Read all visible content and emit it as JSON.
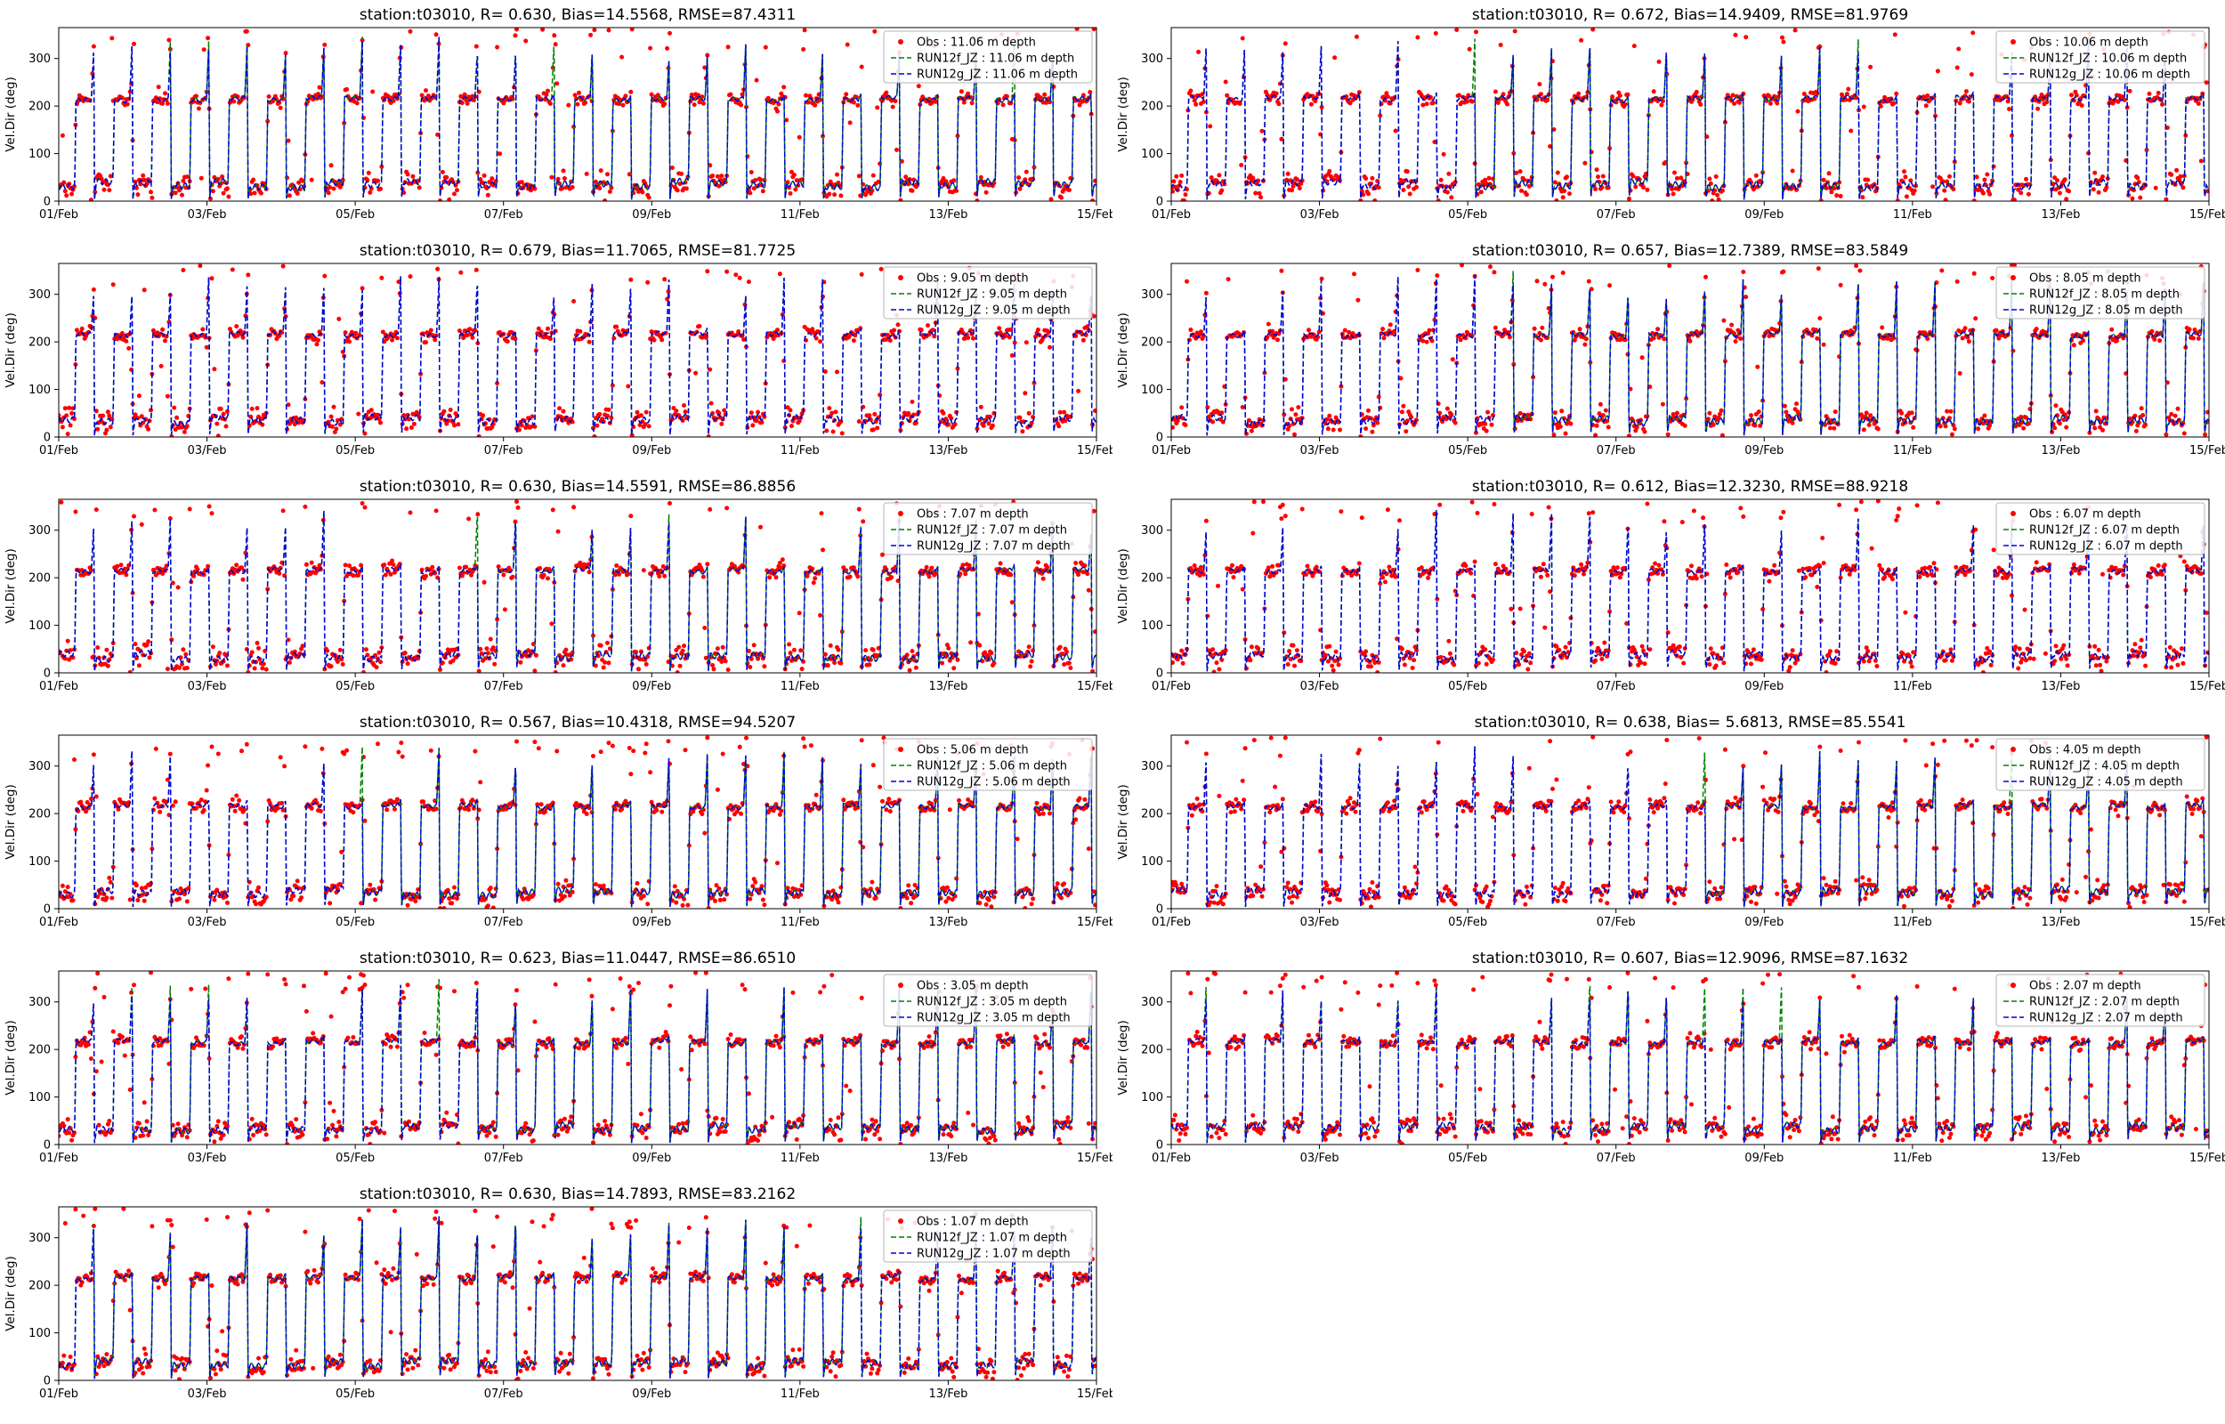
{
  "figure": {
    "background_color": "#ffffff",
    "station": "t03010"
  },
  "chart_data": {
    "type": "line",
    "layout": {
      "rows": 6,
      "cols": 2,
      "panel_order": "row-major",
      "last_row_panels": 1,
      "grid": false,
      "legend_position": "upper right"
    },
    "x_axis": {
      "label": "",
      "range_days": [
        0,
        14
      ],
      "tick_positions_days": [
        0,
        2,
        4,
        6,
        8,
        10,
        12,
        14
      ],
      "tick_labels": [
        "01/Feb",
        "03/Feb",
        "05/Feb",
        "07/Feb",
        "09/Feb",
        "11/Feb",
        "13/Feb",
        "15/Feb"
      ]
    },
    "y_axis": {
      "label": "Vel.Dir (deg)",
      "range": [
        0,
        365
      ],
      "ticks": [
        0,
        100,
        200,
        300
      ]
    },
    "tidal_pattern": {
      "period_days": 0.5175,
      "phase_offset_cycles": 0.55,
      "flood_direction_deg": 215,
      "ebb_direction_deg": 35,
      "spike_max_deg": 350,
      "spike_min_deg": 0,
      "spike_probability": 0.72,
      "obs_interval_days": 0.0175,
      "line_interval_days": 0.007,
      "obs_noise_flood_deg": 6.5,
      "obs_noise_ebb_deg": 11,
      "obs_outlier_fraction": 0.05,
      "transition_scatter_fraction": 0.45,
      "green_deviation_fraction": 0.11
    },
    "panels": [
      {
        "title": "station:t03010, R= 0.630, Bias=14.5568, RMSE=87.4311",
        "station": "t03010",
        "R": 0.63,
        "bias": 14.5568,
        "rmse": 87.4311,
        "depth_m": 11.06,
        "series": [
          {
            "label": "Obs : 11.06 m depth",
            "type": "scatter",
            "color": "#ff0000"
          },
          {
            "label": "RUN12f_JZ : 11.06 m depth",
            "type": "dashed-line",
            "color": "#008000"
          },
          {
            "label": "RUN12g_JZ : 11.06 m depth",
            "type": "dashed-line",
            "color": "#0000dd"
          }
        ]
      },
      {
        "title": "station:t03010, R= 0.672, Bias=14.9409, RMSE=81.9769",
        "station": "t03010",
        "R": 0.672,
        "bias": 14.9409,
        "rmse": 81.9769,
        "depth_m": 10.06,
        "series": [
          {
            "label": "Obs : 10.06 m depth",
            "type": "scatter",
            "color": "#ff0000"
          },
          {
            "label": "RUN12f_JZ : 10.06 m depth",
            "type": "dashed-line",
            "color": "#008000"
          },
          {
            "label": "RUN12g_JZ : 10.06 m depth",
            "type": "dashed-line",
            "color": "#0000dd"
          }
        ]
      },
      {
        "title": "station:t03010, R= 0.679, Bias=11.7065, RMSE=81.7725",
        "station": "t03010",
        "R": 0.679,
        "bias": 11.7065,
        "rmse": 81.7725,
        "depth_m": 9.05,
        "series": [
          {
            "label": "Obs : 9.05 m depth",
            "type": "scatter",
            "color": "#ff0000"
          },
          {
            "label": "RUN12f_JZ : 9.05 m depth",
            "type": "dashed-line",
            "color": "#008000"
          },
          {
            "label": "RUN12g_JZ : 9.05 m depth",
            "type": "dashed-line",
            "color": "#0000dd"
          }
        ]
      },
      {
        "title": "station:t03010, R= 0.657, Bias=12.7389, RMSE=83.5849",
        "station": "t03010",
        "R": 0.657,
        "bias": 12.7389,
        "rmse": 83.5849,
        "depth_m": 8.05,
        "series": [
          {
            "label": "Obs : 8.05 m depth",
            "type": "scatter",
            "color": "#ff0000"
          },
          {
            "label": "RUN12f_JZ : 8.05 m depth",
            "type": "dashed-line",
            "color": "#008000"
          },
          {
            "label": "RUN12g_JZ : 8.05 m depth",
            "type": "dashed-line",
            "color": "#0000dd"
          }
        ]
      },
      {
        "title": "station:t03010, R= 0.630, Bias=14.5591, RMSE=86.8856",
        "station": "t03010",
        "R": 0.63,
        "bias": 14.5591,
        "rmse": 86.8856,
        "depth_m": 7.07,
        "series": [
          {
            "label": "Obs : 7.07 m depth",
            "type": "scatter",
            "color": "#ff0000"
          },
          {
            "label": "RUN12f_JZ : 7.07 m depth",
            "type": "dashed-line",
            "color": "#008000"
          },
          {
            "label": "RUN12g_JZ : 7.07 m depth",
            "type": "dashed-line",
            "color": "#0000dd"
          }
        ]
      },
      {
        "title": "station:t03010, R= 0.612, Bias=12.3230, RMSE=88.9218",
        "station": "t03010",
        "R": 0.612,
        "bias": 12.323,
        "rmse": 88.9218,
        "depth_m": 6.07,
        "series": [
          {
            "label": "Obs : 6.07 m depth",
            "type": "scatter",
            "color": "#ff0000"
          },
          {
            "label": "RUN12f_JZ : 6.07 m depth",
            "type": "dashed-line",
            "color": "#008000"
          },
          {
            "label": "RUN12g_JZ : 6.07 m depth",
            "type": "dashed-line",
            "color": "#0000dd"
          }
        ]
      },
      {
        "title": "station:t03010, R= 0.567, Bias=10.4318, RMSE=94.5207",
        "station": "t03010",
        "R": 0.567,
        "bias": 10.4318,
        "rmse": 94.5207,
        "depth_m": 5.06,
        "series": [
          {
            "label": "Obs : 5.06 m depth",
            "type": "scatter",
            "color": "#ff0000"
          },
          {
            "label": "RUN12f_JZ : 5.06 m depth",
            "type": "dashed-line",
            "color": "#008000"
          },
          {
            "label": "RUN12g_JZ : 5.06 m depth",
            "type": "dashed-line",
            "color": "#0000dd"
          }
        ]
      },
      {
        "title": "station:t03010, R= 0.638, Bias= 5.6813, RMSE=85.5541",
        "station": "t03010",
        "R": 0.638,
        "bias": 5.6813,
        "rmse": 85.5541,
        "depth_m": 4.05,
        "series": [
          {
            "label": "Obs : 4.05 m depth",
            "type": "scatter",
            "color": "#ff0000"
          },
          {
            "label": "RUN12f_JZ : 4.05 m depth",
            "type": "dashed-line",
            "color": "#008000"
          },
          {
            "label": "RUN12g_JZ : 4.05 m depth",
            "type": "dashed-line",
            "color": "#0000dd"
          }
        ]
      },
      {
        "title": "station:t03010, R= 0.623, Bias=11.0447, RMSE=86.6510",
        "station": "t03010",
        "R": 0.623,
        "bias": 11.0447,
        "rmse": 86.651,
        "depth_m": 3.05,
        "series": [
          {
            "label": "Obs : 3.05 m depth",
            "type": "scatter",
            "color": "#ff0000"
          },
          {
            "label": "RUN12f_JZ : 3.05 m depth",
            "type": "dashed-line",
            "color": "#008000"
          },
          {
            "label": "RUN12g_JZ : 3.05 m depth",
            "type": "dashed-line",
            "color": "#0000dd"
          }
        ]
      },
      {
        "title": "station:t03010, R= 0.607, Bias=12.9096, RMSE=87.1632",
        "station": "t03010",
        "R": 0.607,
        "bias": 12.9096,
        "rmse": 87.1632,
        "depth_m": 2.07,
        "series": [
          {
            "label": "Obs : 2.07 m depth",
            "type": "scatter",
            "color": "#ff0000"
          },
          {
            "label": "RUN12f_JZ : 2.07 m depth",
            "type": "dashed-line",
            "color": "#008000"
          },
          {
            "label": "RUN12g_JZ : 2.07 m depth",
            "type": "dashed-line",
            "color": "#0000dd"
          }
        ]
      },
      {
        "title": "station:t03010, R= 0.630, Bias=14.7893, RMSE=83.2162",
        "station": "t03010",
        "R": 0.63,
        "bias": 14.7893,
        "rmse": 83.2162,
        "depth_m": 1.07,
        "series": [
          {
            "label": "Obs : 1.07 m depth",
            "type": "scatter",
            "color": "#ff0000"
          },
          {
            "label": "RUN12f_JZ : 1.07 m depth",
            "type": "dashed-line",
            "color": "#008000"
          },
          {
            "label": "RUN12g_JZ : 1.07 m depth",
            "type": "dashed-line",
            "color": "#0000dd"
          }
        ]
      }
    ]
  }
}
